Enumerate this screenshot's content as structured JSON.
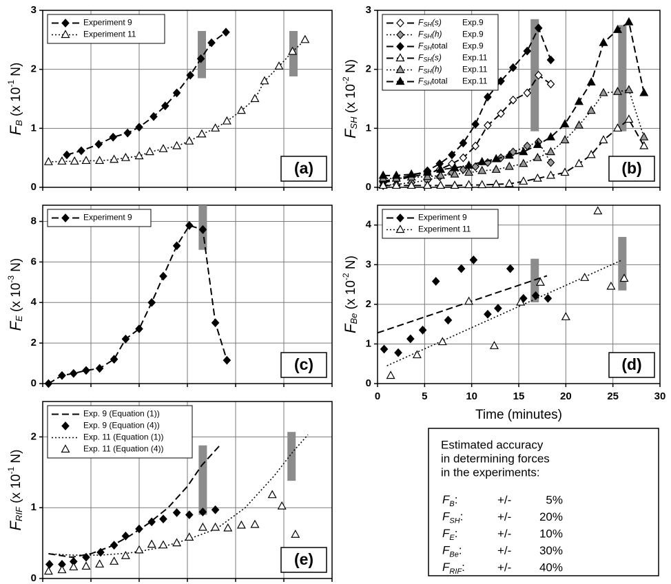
{
  "chart_data": [
    {
      "type": "line",
      "panel_label": "(a)",
      "legend": "upper left",
      "grid": true,
      "xtick_labels": false,
      "ylabel": {
        "base": "F",
        "sub": "B",
        "pre": " (x 10",
        "sup": "-1",
        "post": " N)"
      },
      "xlim": [
        0,
        30
      ],
      "xticks": [
        0,
        5,
        10,
        15,
        20,
        25,
        30
      ],
      "ylim": [
        0,
        3
      ],
      "yticks": [
        0,
        1,
        2,
        3
      ],
      "series": [
        {
          "name": "Experiment 9",
          "marker": "diamond",
          "marker_fill": "#000",
          "line": "dash",
          "color": "#000",
          "x": [
            2.5,
            4,
            5.8,
            7.3,
            8.8,
            10,
            11.5,
            12.7,
            13.9,
            15.3,
            16.4,
            17.5,
            19
          ],
          "values": [
            0.55,
            0.62,
            0.73,
            0.85,
            0.92,
            1.02,
            1.2,
            1.38,
            1.6,
            1.9,
            2.18,
            2.45,
            2.63
          ]
        },
        {
          "name": "Experiment 11",
          "marker": "triangle",
          "marker_fill": "#fff",
          "line": "dot",
          "color": "#000",
          "x": [
            0.6,
            2,
            3.3,
            4.5,
            5.9,
            7.4,
            8.6,
            10,
            11.1,
            12.5,
            13.9,
            15.2,
            16.5,
            17.9,
            19.1,
            20.6,
            22,
            23,
            24.5,
            25.9,
            27.2
          ],
          "values": [
            0.43,
            0.44,
            0.44,
            0.45,
            0.45,
            0.47,
            0.5,
            0.53,
            0.6,
            0.65,
            0.7,
            0.78,
            0.9,
            1.0,
            1.12,
            1.3,
            1.5,
            1.8,
            2.05,
            2.3,
            2.5
          ]
        }
      ],
      "bands": [
        {
          "x": 16.5,
          "range": [
            1.85,
            2.65
          ]
        },
        {
          "x": 26,
          "range": [
            1.88,
            2.65
          ]
        }
      ]
    },
    {
      "type": "line",
      "panel_label": "(b)",
      "legend": "upper left",
      "grid": true,
      "xtick_labels": false,
      "ylabel": {
        "base": "F",
        "sub": "SH",
        "pre": " (x 10",
        "sup": "-2",
        "post": " N)"
      },
      "xlim": [
        0,
        30
      ],
      "xticks": [
        0,
        5,
        10,
        15,
        20,
        25,
        30
      ],
      "ylim": [
        0,
        3
      ],
      "yticks": [
        0,
        1,
        2,
        3
      ],
      "series": [
        {
          "name_base": "F",
          "name_sub": "SH",
          "name": "(s)",
          "exp": "Exp.9",
          "marker": "diamond",
          "marker_fill": "#fff",
          "line": "dash",
          "color": "#000",
          "x": [
            0.6,
            2,
            3.6,
            5.3,
            6.6,
            7.9,
            9.1,
            10.4,
            11.7,
            13.1,
            14.4,
            15.9,
            17.1,
            18.4
          ],
          "values": [
            0.08,
            0.12,
            0.18,
            0.23,
            0.3,
            0.4,
            0.5,
            0.7,
            1.05,
            1.25,
            1.48,
            1.6,
            1.9,
            1.75
          ]
        },
        {
          "name_base": "F",
          "name_sub": "SH",
          "name": "(h)",
          "exp": "Exp.9",
          "marker": "diamond",
          "marker_fill": "#999",
          "line": "dot",
          "color": "#000",
          "x": [
            0.6,
            2,
            3.6,
            5.3,
            6.6,
            7.9,
            9.1,
            10.4,
            11.7,
            13.1,
            14.4,
            15.9,
            17.1,
            18.4
          ],
          "values": [
            0.03,
            0.05,
            0.08,
            0.12,
            0.18,
            0.25,
            0.3,
            0.35,
            0.42,
            0.5,
            0.6,
            0.7,
            0.77,
            0.42
          ]
        },
        {
          "name_base": "F",
          "name_sub": "SH",
          "name": "total",
          "exp": "Exp.9",
          "marker": "diamond",
          "marker_fill": "#000",
          "line": "dash",
          "color": "#000",
          "x": [
            0.6,
            2,
            3.6,
            5.3,
            6.6,
            7.9,
            9.1,
            10.4,
            11.7,
            13.1,
            14.4,
            15.9,
            17.1,
            18.4
          ],
          "values": [
            0.1,
            0.15,
            0.2,
            0.28,
            0.4,
            0.55,
            0.75,
            1.07,
            1.53,
            1.8,
            2.03,
            2.31,
            2.7,
            2.16
          ]
        },
        {
          "name_base": "F",
          "name_sub": "SH",
          "name": "(s)",
          "exp": "Exp.11",
          "marker": "triangle",
          "marker_fill": "#fff",
          "line": "dash",
          "color": "#000",
          "x": [
            0.6,
            2,
            3.6,
            5.3,
            6.7,
            8.2,
            9.7,
            11.1,
            12.6,
            14,
            15.5,
            17,
            18.4,
            19.9,
            21.4,
            22.7,
            24,
            25.5,
            26.7,
            28.3
          ],
          "values": [
            0.03,
            0.03,
            0.03,
            0.03,
            0.03,
            0.03,
            0.04,
            0.04,
            0.05,
            0.06,
            0.1,
            0.15,
            0.2,
            0.25,
            0.4,
            0.55,
            0.8,
            1.0,
            1.15,
            0.7
          ]
        },
        {
          "name_base": "F",
          "name_sub": "SH",
          "name": "(h)",
          "exp": "Exp.11",
          "marker": "triangle",
          "marker_fill": "#999",
          "line": "dot",
          "color": "#000",
          "x": [
            0.6,
            2,
            3.6,
            5.3,
            6.7,
            8.2,
            9.7,
            11.1,
            12.6,
            14,
            15.5,
            17,
            18.4,
            19.9,
            21.4,
            22.7,
            24,
            25.5,
            26.7,
            28.3
          ],
          "values": [
            0.15,
            0.15,
            0.17,
            0.18,
            0.2,
            0.22,
            0.25,
            0.28,
            0.3,
            0.35,
            0.4,
            0.5,
            0.6,
            0.8,
            1.05,
            1.3,
            1.6,
            1.62,
            1.65,
            0.85
          ]
        },
        {
          "name_base": "F",
          "name_sub": "SH",
          "name": "total",
          "exp": "Exp.11",
          "marker": "triangle",
          "marker_fill": "#000",
          "line": "dash",
          "color": "#000",
          "x": [
            0.6,
            2,
            3.6,
            5.3,
            6.7,
            8.2,
            9.7,
            11.1,
            12.6,
            14,
            15.5,
            17,
            18.4,
            19.9,
            21.4,
            22.7,
            24,
            25.5,
            26.7,
            28.3
          ],
          "values": [
            0.2,
            0.2,
            0.22,
            0.25,
            0.3,
            0.33,
            0.37,
            0.43,
            0.48,
            0.54,
            0.6,
            0.72,
            0.85,
            1.07,
            1.45,
            1.78,
            2.45,
            2.67,
            2.8,
            1.6
          ]
        }
      ],
      "bands": [
        {
          "x": 16.7,
          "range": [
            0.95,
            2.85
          ]
        },
        {
          "x": 26,
          "range": [
            0.95,
            2.75
          ]
        }
      ]
    },
    {
      "type": "line",
      "panel_label": "(c)",
      "legend": "upper left",
      "grid": true,
      "xtick_labels": false,
      "ylabel": {
        "base": "F",
        "sub": "E",
        "pre": " (x 10",
        "sup": "-3",
        "post": " N)"
      },
      "xlim": [
        0,
        30
      ],
      "xticks": [
        0,
        5,
        10,
        15,
        20,
        25,
        30
      ],
      "ylim": [
        0,
        8.8
      ],
      "yticks": [
        0,
        2,
        4,
        6,
        8
      ],
      "series": [
        {
          "name": "Experiment 9",
          "marker": "diamond",
          "marker_fill": "#000",
          "line": "dash",
          "color": "#000",
          "x": [
            0.6,
            2,
            3.2,
            4.5,
            5.9,
            7.4,
            8.6,
            10,
            11.3,
            12.5,
            13.9,
            15.2,
            16.6,
            17.9,
            19.1
          ],
          "values": [
            0,
            0.4,
            0.5,
            0.65,
            0.75,
            1.2,
            2.2,
            2.7,
            4.0,
            5.3,
            6.8,
            7.8,
            7.6,
            3.0,
            1.15
          ]
        }
      ],
      "bands": [
        {
          "x": 16.6,
          "range": [
            6.6,
            8.8
          ]
        }
      ]
    },
    {
      "type": "scatter",
      "panel_label": "(d)",
      "legend": "upper left",
      "grid": true,
      "xtick_labels": true,
      "xlabel": "Time (minutes)",
      "ylabel": {
        "base": "F",
        "sub": "Be",
        "pre": " (x 10",
        "sup": "-2",
        "post": " N)"
      },
      "xlim": [
        0,
        30
      ],
      "xticks": [
        0,
        5,
        10,
        15,
        20,
        25,
        30
      ],
      "ylim": [
        0,
        4.5
      ],
      "yticks": [
        0,
        1,
        2,
        3,
        4
      ],
      "series": [
        {
          "name": "Experiment 9",
          "marker": "diamond",
          "marker_fill": "#000",
          "line": "dash",
          "color": "#000",
          "x": [
            0.7,
            2.2,
            3.5,
            4.8,
            6.2,
            7.5,
            8.9,
            10.2,
            11.7,
            12.8,
            14.1,
            15.5,
            16.8,
            18.1
          ],
          "values": [
            0.87,
            0.78,
            1.13,
            1.35,
            2.58,
            1.6,
            2.9,
            3.12,
            1.75,
            1.9,
            2.9,
            2.15,
            2.22,
            2.15
          ],
          "trend_x": [
            0,
            18
          ],
          "trend_y": [
            1.28,
            2.72
          ]
        },
        {
          "name": "Experiment 11",
          "marker": "triangle",
          "marker_fill": "#fff",
          "line": "dot",
          "color": "#000",
          "x": [
            1.4,
            4.2,
            6.9,
            9.7,
            12.4,
            15.2,
            17.3,
            20,
            22,
            23.4,
            24.8,
            26.2
          ],
          "values": [
            0.2,
            0.72,
            1.05,
            2.07,
            0.95,
            2.05,
            2.55,
            1.68,
            2.67,
            4.35,
            2.45,
            2.65
          ],
          "trend_x": [
            1,
            26
          ],
          "trend_y": [
            0.45,
            3.12
          ]
        }
      ],
      "bands": [
        {
          "x": 16.7,
          "range": [
            2.05,
            3.15
          ]
        },
        {
          "x": 26,
          "range": [
            2.35,
            3.7
          ]
        }
      ]
    },
    {
      "type": "line",
      "panel_label": "(e)",
      "legend": "upper left",
      "grid": true,
      "xtick_labels": false,
      "ylabel": {
        "base": "F",
        "sub": "RIF",
        "pre": " (x 10",
        "sup": "-1",
        "post": " N)"
      },
      "xlim": [
        0,
        30
      ],
      "xticks": [
        0,
        5,
        10,
        15,
        20,
        25,
        30
      ],
      "ylim": [
        0,
        2.5
      ],
      "yticks": [
        0,
        1,
        2
      ],
      "series": [
        {
          "name": "Exp. 9  (Equation (1))",
          "marker": "none",
          "marker_fill": "#000",
          "line": "dash",
          "color": "#000",
          "x": [
            0.6,
            3,
            5,
            7,
            9,
            11,
            13,
            15,
            16.5,
            18.5
          ],
          "values": [
            0.35,
            0.3,
            0.35,
            0.45,
            0.6,
            0.78,
            1.0,
            1.3,
            1.6,
            1.9
          ]
        },
        {
          "name": "Exp. 9  (Equation (4))",
          "marker": "diamond",
          "marker_fill": "#000",
          "line": "none",
          "color": "#000",
          "x": [
            0.7,
            2,
            3.2,
            4.5,
            6,
            7.4,
            8.6,
            10,
            11.3,
            12.5,
            13.9,
            15.2,
            16.6,
            17.9
          ],
          "values": [
            0.2,
            0.2,
            0.24,
            0.3,
            0.37,
            0.47,
            0.6,
            0.7,
            0.8,
            0.84,
            0.93,
            0.9,
            0.94,
            0.97
          ]
        },
        {
          "name": "Exp. 11 (Equation (1))",
          "marker": "none",
          "marker_fill": "#000",
          "line": "dot",
          "color": "#000",
          "x": [
            0.6,
            3,
            6,
            9,
            12,
            15,
            18,
            21,
            24,
            26,
            27.5
          ],
          "values": [
            0.35,
            0.33,
            0.33,
            0.36,
            0.43,
            0.55,
            0.7,
            1.0,
            1.45,
            1.8,
            2.03
          ]
        },
        {
          "name": "Exp. 11 (Equation (4))",
          "marker": "triangle",
          "marker_fill": "#fff",
          "line": "none",
          "color": "#000",
          "x": [
            0.6,
            2,
            3.2,
            4.5,
            5.9,
            7.4,
            8.6,
            10,
            11.3,
            12.5,
            13.9,
            15.2,
            16.6,
            17.9,
            19.2,
            20.6,
            22,
            23.8,
            24.8,
            26.2
          ],
          "values": [
            0.1,
            0.12,
            0.16,
            0.17,
            0.2,
            0.24,
            0.32,
            0.4,
            0.48,
            0.47,
            0.5,
            0.58,
            0.72,
            0.72,
            0.71,
            0.75,
            0.76,
            1.18,
            1.02,
            0.62
          ]
        }
      ],
      "bands": [
        {
          "x": 16.6,
          "range": [
            0.9,
            1.88
          ]
        },
        {
          "x": 25.8,
          "range": [
            1.38,
            2.07
          ]
        }
      ]
    }
  ],
  "accuracy_box": {
    "lines": [
      "Estimated accuracy",
      "in determining forces",
      "in the experiments:"
    ],
    "rows": [
      {
        "base": "F",
        "sub": "B",
        "colon": ":",
        "pm": "+/-",
        "value": "5%"
      },
      {
        "base": "F",
        "sub": "SH",
        "colon": ":",
        "pm": "+/-",
        "value": "20%"
      },
      {
        "base": "F",
        "sub": "E",
        "colon": ":",
        "pm": "+/-",
        "value": "10%"
      },
      {
        "base": "F",
        "sub": "Be",
        "colon": ":",
        "pm": "+/-",
        "value": "30%"
      },
      {
        "base": "F",
        "sub": "RIF",
        "colon": ":",
        "pm": "+/-",
        "value": "40%"
      }
    ]
  }
}
